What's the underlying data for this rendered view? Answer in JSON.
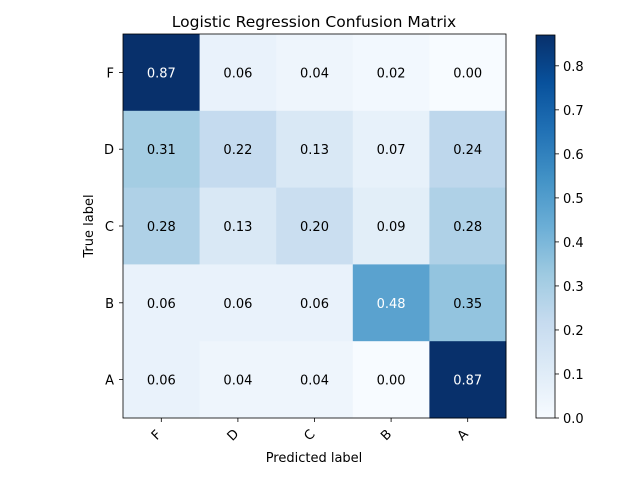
{
  "chart_data": {
    "type": "heatmap",
    "title": "Logistic Regression Confusion Matrix",
    "xlabel": "Predicted label",
    "ylabel": "True label",
    "x_categories": [
      "F",
      "D",
      "C",
      "B",
      "A"
    ],
    "y_categories": [
      "F",
      "D",
      "C",
      "B",
      "A"
    ],
    "values": [
      [
        0.87,
        0.06,
        0.04,
        0.02,
        0.0
      ],
      [
        0.31,
        0.22,
        0.13,
        0.07,
        0.24
      ],
      [
        0.28,
        0.13,
        0.2,
        0.09,
        0.28
      ],
      [
        0.06,
        0.06,
        0.06,
        0.48,
        0.35
      ],
      [
        0.06,
        0.04,
        0.04,
        0.0,
        0.87
      ]
    ],
    "value_labels": [
      [
        "0.87",
        "0.06",
        "0.04",
        "0.02",
        "0.00"
      ],
      [
        "0.31",
        "0.22",
        "0.13",
        "0.07",
        "0.24"
      ],
      [
        "0.28",
        "0.13",
        "0.20",
        "0.09",
        "0.28"
      ],
      [
        "0.06",
        "0.06",
        "0.06",
        "0.48",
        "0.35"
      ],
      [
        "0.06",
        "0.04",
        "0.04",
        "0.00",
        "0.87"
      ]
    ],
    "colormap": "Blues",
    "colorbar": {
      "range": [
        0,
        0.87
      ],
      "ticks": [
        0.0,
        0.1,
        0.2,
        0.3,
        0.4,
        0.5,
        0.6,
        0.7,
        0.8
      ],
      "tick_labels": [
        "0.0",
        "0.1",
        "0.2",
        "0.3",
        "0.4",
        "0.5",
        "0.6",
        "0.7",
        "0.8"
      ]
    },
    "x_tick_rotation_deg": 45,
    "grid": false
  }
}
